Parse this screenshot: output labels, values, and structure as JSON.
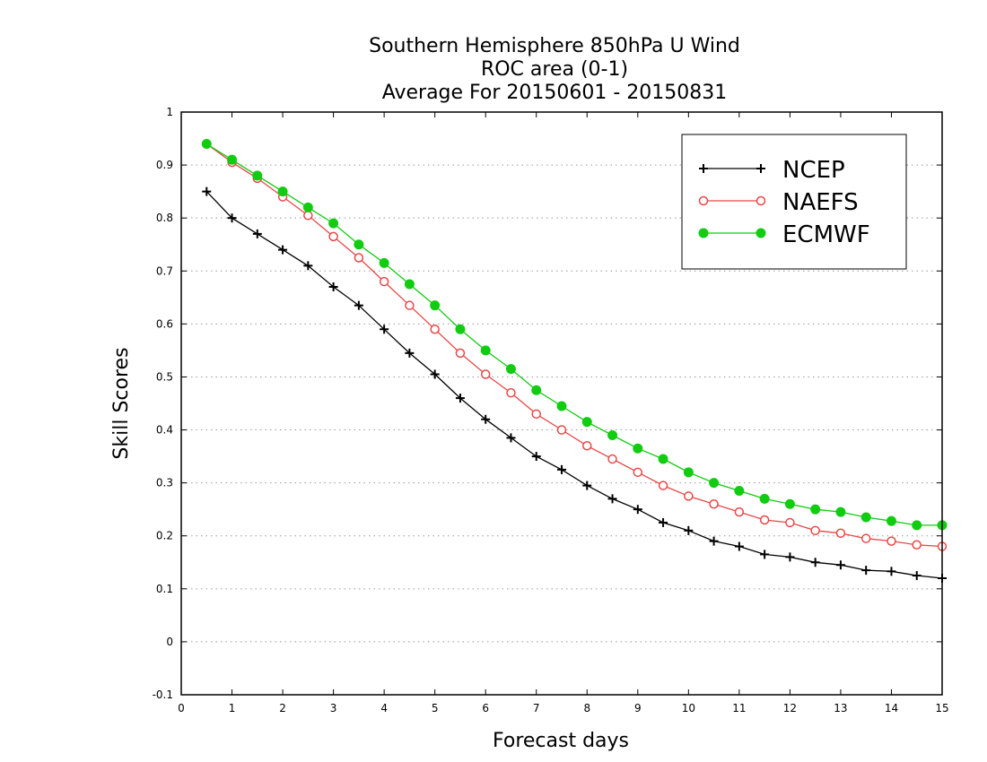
{
  "chart_data": {
    "type": "line",
    "title_lines": [
      "Southern Hemisphere 850hPa U Wind",
      "ROC area (0-1)",
      "Average For 20150601 - 20150831"
    ],
    "xlabel": "Forecast days",
    "ylabel": "Skill Scores",
    "xlim": [
      0,
      15
    ],
    "ylim": [
      -0.1,
      1
    ],
    "x_ticks": [
      "0",
      "1",
      "2",
      "3",
      "4",
      "5",
      "6",
      "7",
      "8",
      "9",
      "10",
      "11",
      "12",
      "13",
      "14",
      "15"
    ],
    "y_ticks": [
      "-0.1",
      "0",
      "0.1",
      "0.2",
      "0.3",
      "0.4",
      "0.5",
      "0.6",
      "0.7",
      "0.8",
      "0.9",
      "1"
    ],
    "grid": true,
    "legend_position": "top-right",
    "x": [
      0.5,
      1,
      1.5,
      2,
      2.5,
      3,
      3.5,
      4,
      4.5,
      5,
      5.5,
      6,
      6.5,
      7,
      7.5,
      8,
      8.5,
      9,
      9.5,
      10,
      10.5,
      11,
      11.5,
      12,
      12.5,
      13,
      13.5,
      14,
      14.5,
      15
    ],
    "series": [
      {
        "name": "NCEP",
        "color": "#000000",
        "marker": "plus",
        "values": [
          0.85,
          0.8,
          0.77,
          0.74,
          0.71,
          0.67,
          0.635,
          0.59,
          0.545,
          0.505,
          0.46,
          0.42,
          0.385,
          0.35,
          0.325,
          0.295,
          0.27,
          0.25,
          0.225,
          0.21,
          0.19,
          0.18,
          0.165,
          0.16,
          0.15,
          0.145,
          0.135,
          0.133,
          0.125,
          0.12
        ]
      },
      {
        "name": "NAEFS",
        "color": "#e84848",
        "marker": "open-circle",
        "values": [
          0.94,
          0.905,
          0.875,
          0.84,
          0.805,
          0.765,
          0.725,
          0.68,
          0.635,
          0.59,
          0.545,
          0.505,
          0.47,
          0.43,
          0.4,
          0.37,
          0.345,
          0.32,
          0.295,
          0.275,
          0.26,
          0.245,
          0.23,
          0.225,
          0.21,
          0.205,
          0.195,
          0.19,
          0.183,
          0.18
        ]
      },
      {
        "name": "ECMWF",
        "color": "#11cc11",
        "marker": "filled-circle",
        "values": [
          0.94,
          0.91,
          0.88,
          0.85,
          0.82,
          0.79,
          0.75,
          0.715,
          0.675,
          0.635,
          0.59,
          0.55,
          0.515,
          0.475,
          0.445,
          0.415,
          0.39,
          0.365,
          0.345,
          0.32,
          0.3,
          0.285,
          0.27,
          0.26,
          0.25,
          0.245,
          0.235,
          0.228,
          0.22,
          0.22
        ]
      }
    ]
  }
}
